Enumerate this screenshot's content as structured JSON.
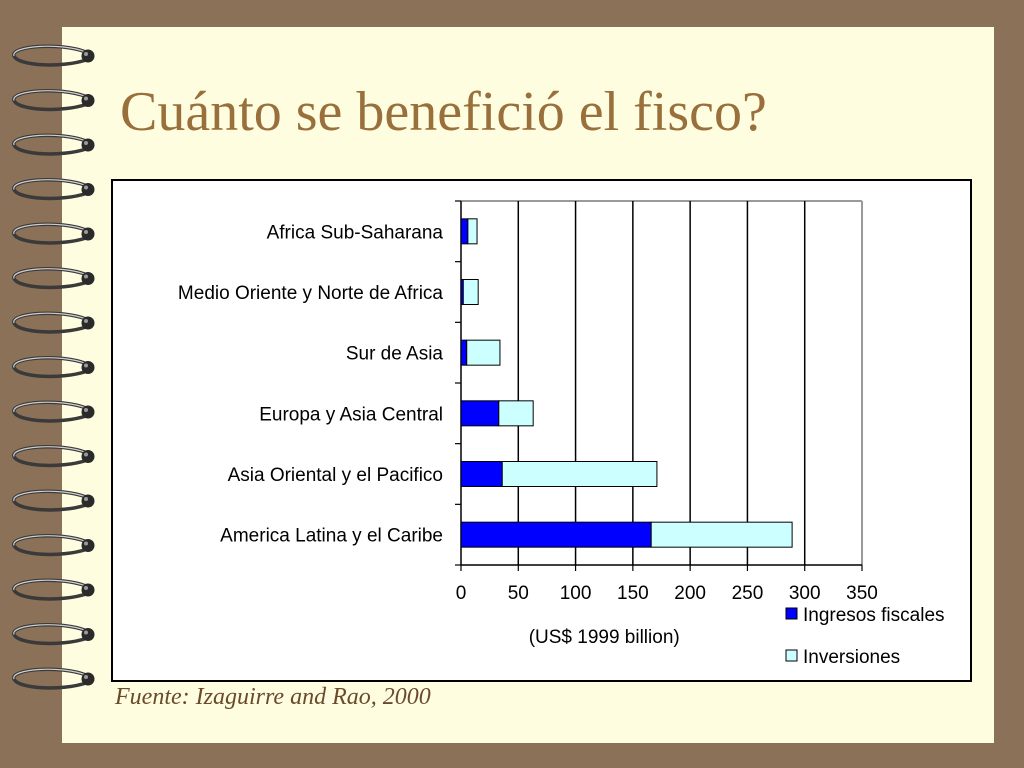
{
  "slide": {
    "title": "Cuánto se benefició el fisco?",
    "source": "Fuente: Izaguirre and Rao, 2000"
  },
  "colors": {
    "background": "#8b7157",
    "page": "#fefde0",
    "title": "#99703c",
    "ingresos": "#0000ff",
    "inversiones": "#ccffff"
  },
  "chart_data": {
    "type": "bar",
    "orientation": "horizontal",
    "stacked": true,
    "categories": [
      "Africa Sub-Saharana",
      "Medio Oriente y Norte de Africa",
      "Sur de Asia",
      "Europa y Asia Central",
      "Asia Oriental y el Pacifico",
      "America Latina y el Caribe"
    ],
    "series": [
      {
        "name": "Ingresos fiscales",
        "color": "#0000ff",
        "values": [
          6,
          2,
          5,
          33,
          36,
          166
        ]
      },
      {
        "name": "Inversiones",
        "color": "#ccffff",
        "values": [
          8,
          13,
          29,
          30,
          135,
          123
        ]
      }
    ],
    "xlabel": "(US$ 1999 billion)",
    "ylabel": "",
    "xlim": [
      0,
      350
    ],
    "xticks": [
      0,
      50,
      100,
      150,
      200,
      250,
      300,
      350
    ],
    "grid": true,
    "legend": "bottom-right"
  }
}
